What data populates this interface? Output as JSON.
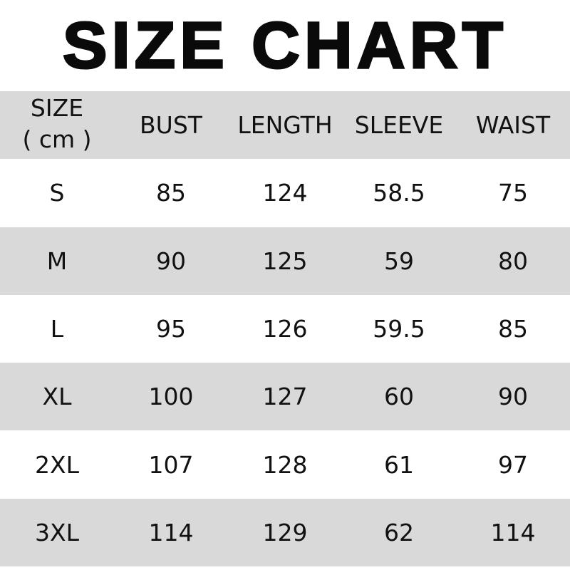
{
  "title": "SIZE CHART",
  "header": {
    "size": "SIZE",
    "unit": "( cm )",
    "columns": [
      "BUST",
      "LENGTH",
      "SLEEVE",
      "WAIST"
    ]
  },
  "rows": [
    {
      "size": "S",
      "values": [
        "85",
        "124",
        "58.5",
        "75"
      ]
    },
    {
      "size": "M",
      "values": [
        "90",
        "125",
        "59",
        "80"
      ]
    },
    {
      "size": "L",
      "values": [
        "95",
        "126",
        "59.5",
        "85"
      ]
    },
    {
      "size": "XL",
      "values": [
        "100",
        "127",
        "60",
        "90"
      ]
    },
    {
      "size": "2XL",
      "values": [
        "107",
        "128",
        "61",
        "97"
      ]
    },
    {
      "size": "3XL",
      "values": [
        "114",
        "129",
        "62",
        "114"
      ]
    }
  ],
  "colors": {
    "stripe": "#d9d9d9",
    "background": "#ffffff",
    "text": "#111111"
  }
}
